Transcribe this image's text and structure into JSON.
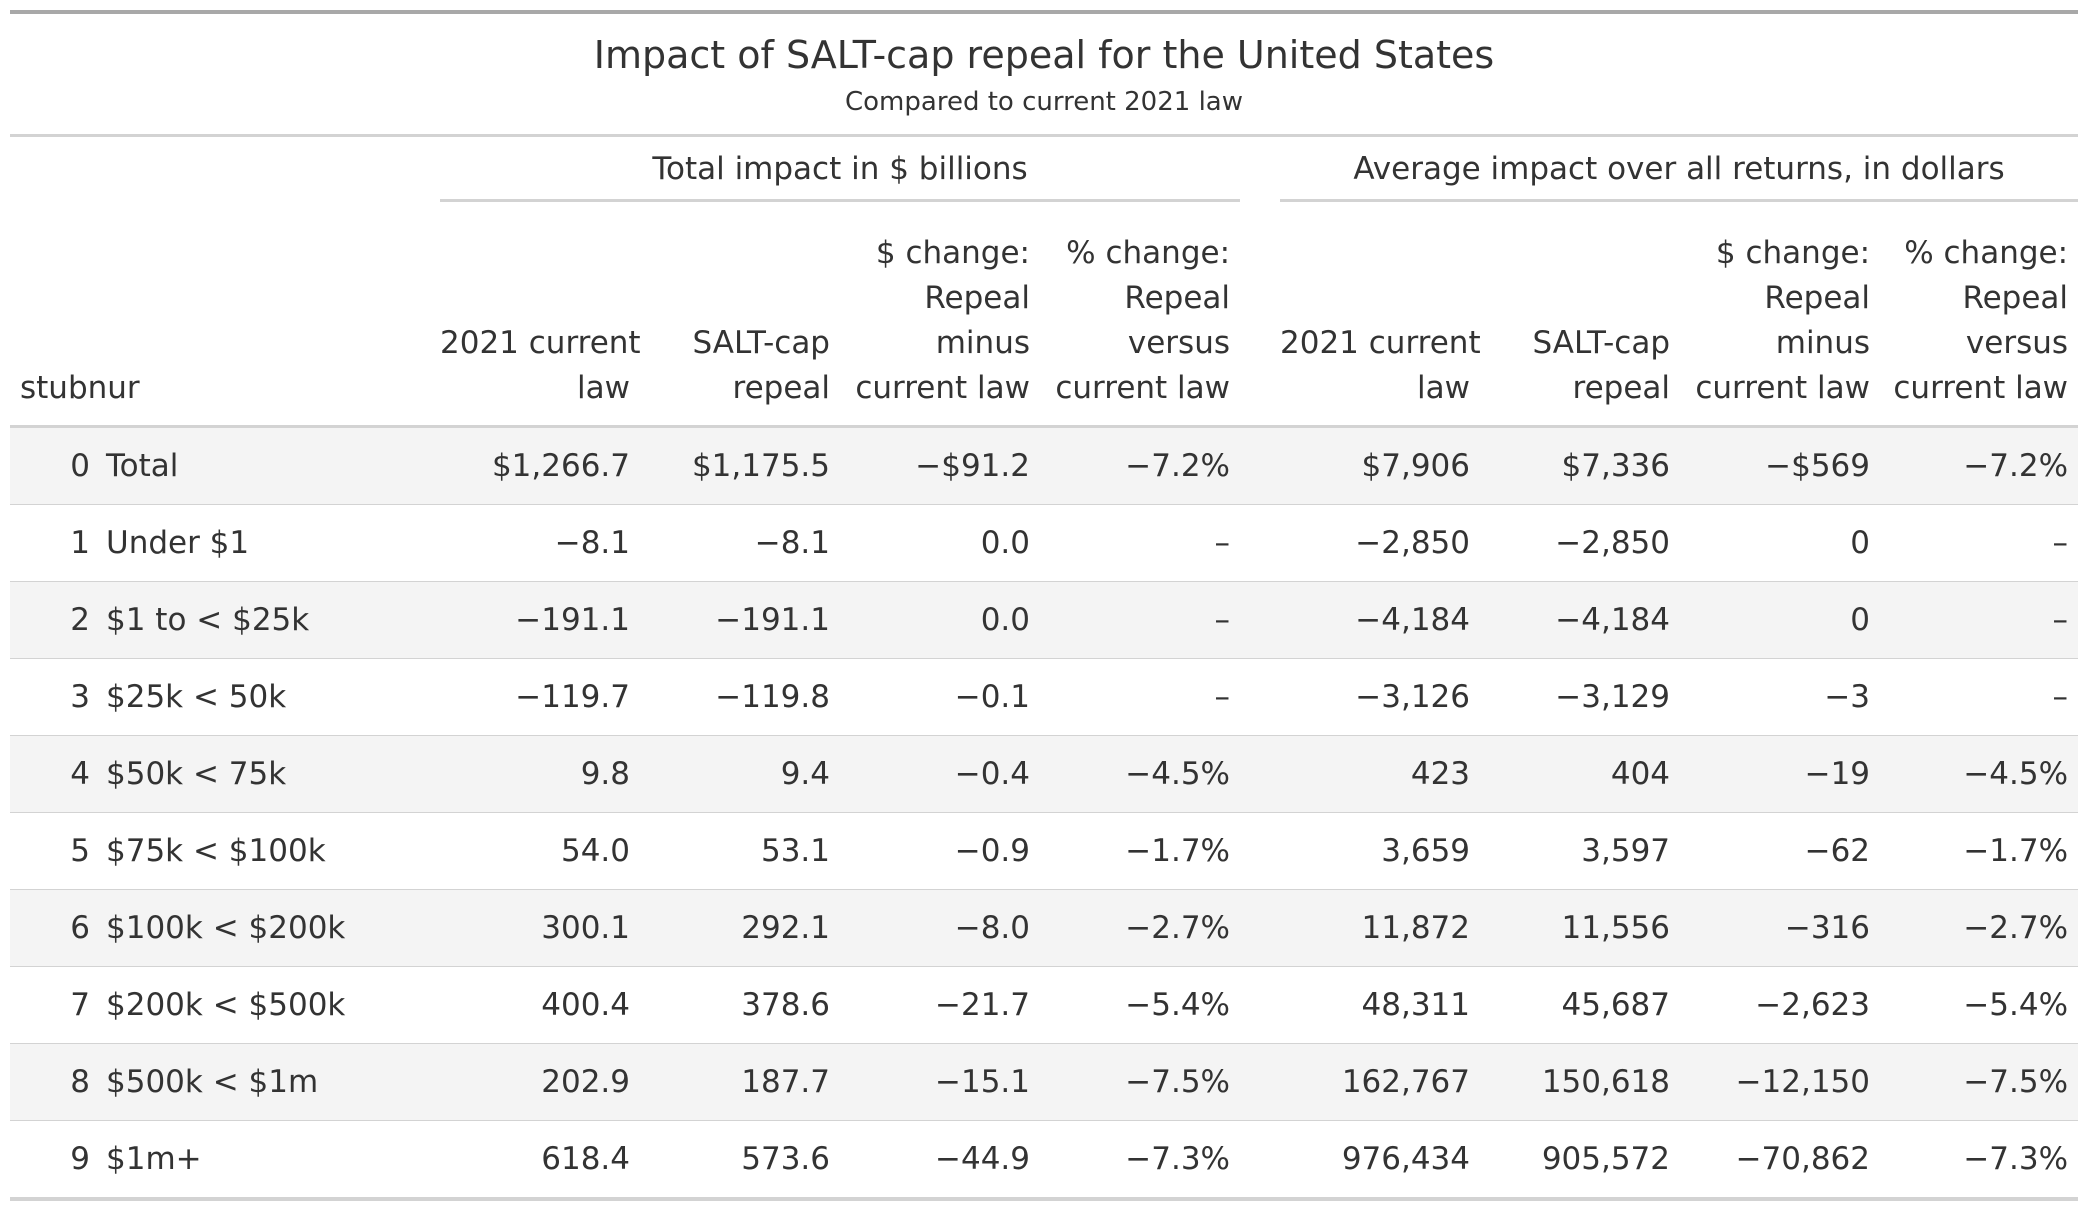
{
  "title": "Impact of SALT-cap repeal for the United States",
  "subtitle": "Compared to current 2021 law",
  "spanners": {
    "total": "Total impact in $ billions",
    "average": "Average impact over all returns, in dollars"
  },
  "columns": {
    "stub": "stubnur",
    "total_current": [
      "2021 current",
      "law"
    ],
    "total_repeal": [
      "SALT-cap",
      "repeal"
    ],
    "total_change": [
      "$ change:",
      "Repeal",
      "minus",
      "current law"
    ],
    "total_pct": [
      "% change:",
      "Repeal",
      "versus",
      "current law"
    ],
    "avg_current": [
      "2021 current",
      "law"
    ],
    "avg_repeal": [
      "SALT-cap",
      "repeal"
    ],
    "avg_change": [
      "$ change:",
      "Repeal",
      "minus",
      "current law"
    ],
    "avg_pct": [
      "% change:",
      "Repeal",
      "versus",
      "current law"
    ]
  },
  "rows": [
    {
      "num": "0",
      "group": "Total",
      "total_current": "$1,266.7",
      "total_repeal": "$1,175.5",
      "total_change": "−$91.2",
      "total_pct": "−7.2%",
      "avg_current": "$7,906",
      "avg_repeal": "$7,336",
      "avg_change": "−$569",
      "avg_pct": "−7.2%"
    },
    {
      "num": "1",
      "group": "Under $1",
      "total_current": "−8.1",
      "total_repeal": "−8.1",
      "total_change": "0.0",
      "total_pct": "–",
      "avg_current": "−2,850",
      "avg_repeal": "−2,850",
      "avg_change": "0",
      "avg_pct": "–"
    },
    {
      "num": "2",
      "group": "$1 to < $25k",
      "total_current": "−191.1",
      "total_repeal": "−191.1",
      "total_change": "0.0",
      "total_pct": "–",
      "avg_current": "−4,184",
      "avg_repeal": "−4,184",
      "avg_change": "0",
      "avg_pct": "–"
    },
    {
      "num": "3",
      "group": "$25k < 50k",
      "total_current": "−119.7",
      "total_repeal": "−119.8",
      "total_change": "−0.1",
      "total_pct": "–",
      "avg_current": "−3,126",
      "avg_repeal": "−3,129",
      "avg_change": "−3",
      "avg_pct": "–"
    },
    {
      "num": "4",
      "group": "$50k < 75k",
      "total_current": "9.8",
      "total_repeal": "9.4",
      "total_change": "−0.4",
      "total_pct": "−4.5%",
      "avg_current": "423",
      "avg_repeal": "404",
      "avg_change": "−19",
      "avg_pct": "−4.5%"
    },
    {
      "num": "5",
      "group": "$75k < $100k",
      "total_current": "54.0",
      "total_repeal": "53.1",
      "total_change": "−0.9",
      "total_pct": "−1.7%",
      "avg_current": "3,659",
      "avg_repeal": "3,597",
      "avg_change": "−62",
      "avg_pct": "−1.7%"
    },
    {
      "num": "6",
      "group": "$100k < $200k",
      "total_current": "300.1",
      "total_repeal": "292.1",
      "total_change": "−8.0",
      "total_pct": "−2.7%",
      "avg_current": "11,872",
      "avg_repeal": "11,556",
      "avg_change": "−316",
      "avg_pct": "−2.7%"
    },
    {
      "num": "7",
      "group": "$200k < $500k",
      "total_current": "400.4",
      "total_repeal": "378.6",
      "total_change": "−21.7",
      "total_pct": "−5.4%",
      "avg_current": "48,311",
      "avg_repeal": "45,687",
      "avg_change": "−2,623",
      "avg_pct": "−5.4%"
    },
    {
      "num": "8",
      "group": "$500k < $1m",
      "total_current": "202.9",
      "total_repeal": "187.7",
      "total_change": "−15.1",
      "total_pct": "−7.5%",
      "avg_current": "162,767",
      "avg_repeal": "150,618",
      "avg_change": "−12,150",
      "avg_pct": "−7.5%"
    },
    {
      "num": "9",
      "group": "$1m+",
      "total_current": "618.4",
      "total_repeal": "573.6",
      "total_change": "−44.9",
      "total_pct": "−7.3%",
      "avg_current": "976,434",
      "avg_repeal": "905,572",
      "avg_change": "−70,862",
      "avg_pct": "−7.3%"
    }
  ]
}
